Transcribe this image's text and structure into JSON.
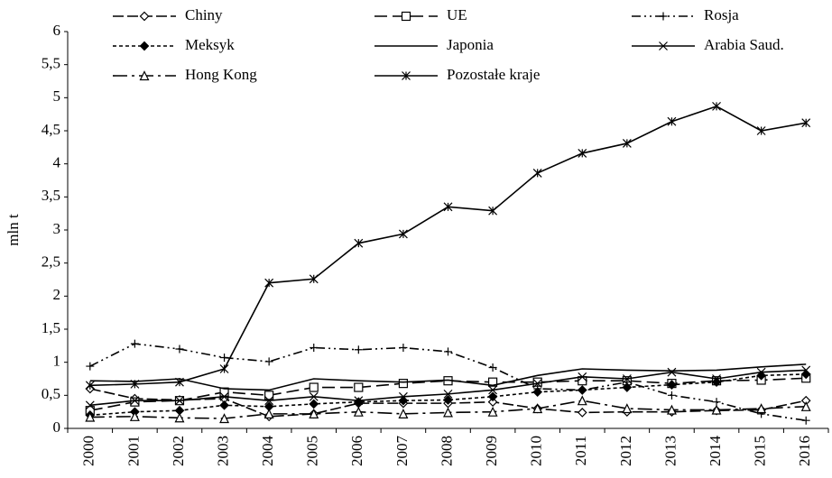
{
  "chart_data": {
    "type": "line",
    "y_label": "mln t",
    "categories": [
      "2000",
      "2001",
      "2002",
      "2003",
      "2004",
      "2005",
      "2006",
      "2007",
      "2008",
      "2009",
      "2010",
      "2011",
      "2012",
      "2013",
      "2014",
      "2015",
      "2016"
    ],
    "ylim": [
      0,
      6
    ],
    "yticks": [
      0,
      {
        "value": 0.5,
        "label": "0,5"
      },
      1,
      {
        "value": 1.5,
        "label": "1,5"
      },
      2,
      {
        "value": 2.5,
        "label": "2,5"
      },
      3,
      {
        "value": 3.5,
        "label": "3,5"
      },
      4,
      {
        "value": 4.5,
        "label": "4,5"
      },
      5,
      {
        "value": 5.5,
        "label": "5,5"
      },
      6
    ],
    "grid": false,
    "legend": "top",
    "series": [
      {
        "name": "Chiny",
        "color": "#000000",
        "dash": "12,4",
        "marker": "diamond-open",
        "values": [
          0.6,
          0.45,
          0.43,
          0.45,
          0.18,
          0.22,
          0.38,
          0.38,
          0.38,
          0.4,
          0.3,
          0.24,
          0.25,
          0.25,
          0.27,
          0.28,
          0.42
        ]
      },
      {
        "name": "UE",
        "color": "#000000",
        "dash": "14,6",
        "marker": "square-open",
        "values": [
          0.27,
          0.4,
          0.42,
          0.55,
          0.5,
          0.62,
          0.62,
          0.68,
          0.72,
          0.7,
          0.7,
          0.72,
          0.72,
          0.68,
          0.72,
          0.73,
          0.76
        ]
      },
      {
        "name": "Rosja",
        "color": "#000000",
        "dash": "10,4,2,4,2,4",
        "marker": "plus",
        "values": [
          0.94,
          1.28,
          1.2,
          1.07,
          1.01,
          1.22,
          1.19,
          1.22,
          1.16,
          0.92,
          0.6,
          0.58,
          0.7,
          0.5,
          0.4,
          0.22,
          0.12
        ]
      },
      {
        "name": "Meksyk",
        "color": "#000000",
        "dash": "4,3",
        "marker": "diamond-filled",
        "values": [
          0.2,
          0.25,
          0.27,
          0.35,
          0.33,
          0.37,
          0.4,
          0.42,
          0.43,
          0.48,
          0.55,
          0.58,
          0.62,
          0.66,
          0.7,
          0.8,
          0.82
        ]
      },
      {
        "name": "Japonia",
        "color": "#000000",
        "dash": "none",
        "marker": "none",
        "values": [
          0.72,
          0.71,
          0.75,
          0.6,
          0.58,
          0.75,
          0.72,
          0.7,
          0.73,
          0.65,
          0.8,
          0.9,
          0.88,
          0.87,
          0.88,
          0.93,
          0.97
        ]
      },
      {
        "name": "Arabia Saud.",
        "color": "#000000",
        "dash": "none",
        "marker": "x",
        "values": [
          0.35,
          0.42,
          0.42,
          0.48,
          0.42,
          0.48,
          0.42,
          0.48,
          0.52,
          0.58,
          0.68,
          0.78,
          0.75,
          0.85,
          0.75,
          0.85,
          0.88
        ]
      },
      {
        "name": "Hong Kong",
        "color": "#000000",
        "dash": "16,5,3,5",
        "marker": "triangle-open",
        "values": [
          0.17,
          0.18,
          0.16,
          0.15,
          0.22,
          0.22,
          0.25,
          0.22,
          0.24,
          0.25,
          0.3,
          0.42,
          0.3,
          0.28,
          0.28,
          0.3,
          0.33
        ]
      },
      {
        "name": "Pozostałe kraje",
        "color": "#000000",
        "dash": "none",
        "marker": "asterisk",
        "values": [
          0.65,
          0.67,
          0.7,
          0.9,
          2.2,
          2.26,
          2.8,
          2.94,
          3.35,
          3.29,
          3.86,
          4.16,
          4.31,
          4.64,
          4.87,
          4.5,
          4.62
        ]
      }
    ]
  }
}
